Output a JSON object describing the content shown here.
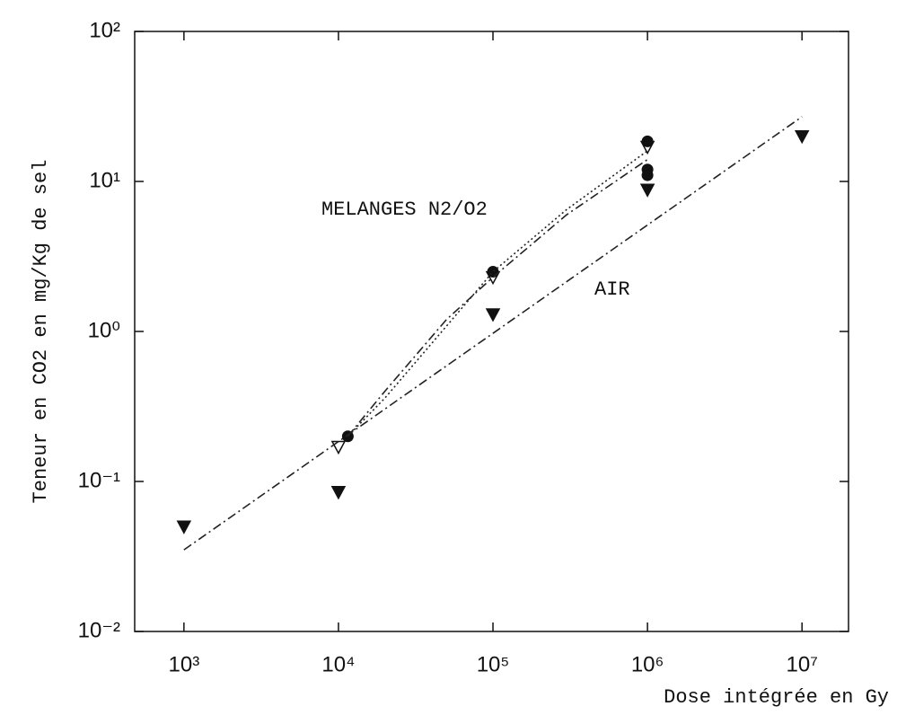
{
  "chart_data": {
    "type": "scatter",
    "x_label": "Dose intégrée en Gy",
    "y_label": "Teneur en CO2 en mg/Kg de sel",
    "annotations": [
      "MELANGES N2/O2",
      "AIR"
    ],
    "log_x": true,
    "log_y": true,
    "xlim": [
      480,
      20000000
    ],
    "ylim": [
      0.01,
      100
    ],
    "xticks": [
      {
        "value": 1000,
        "label": "10³"
      },
      {
        "value": 10000,
        "label": "10⁴"
      },
      {
        "value": 100000,
        "label": "10⁵"
      },
      {
        "value": 1000000,
        "label": "10⁶"
      },
      {
        "value": 10000000,
        "label": "10⁷"
      }
    ],
    "yticks": [
      {
        "value": 0.01,
        "label": "10⁻²"
      },
      {
        "value": 0.1,
        "label": "10⁻¹"
      },
      {
        "value": 1,
        "label": "10⁰"
      },
      {
        "value": 10,
        "label": "10¹"
      },
      {
        "value": 100,
        "label": "10²"
      }
    ],
    "series": [
      {
        "marker": "triangle-down-filled",
        "color": "#111111",
        "x": [
          1000,
          10000,
          100000,
          1000000,
          10000000
        ],
        "values": [
          0.05,
          0.085,
          1.3,
          8.8,
          20
        ]
      },
      {
        "marker": "circle-filled",
        "color": "#111111",
        "x": [
          11500,
          100000,
          1000000,
          1000000,
          1000000
        ],
        "values": [
          0.2,
          2.5,
          18.5,
          12,
          11
        ]
      },
      {
        "marker": "triangle-down-open",
        "color": "#111111",
        "x": [
          10000,
          100000,
          1000000
        ],
        "values": [
          0.17,
          2.3,
          17
        ]
      },
      {
        "line": "dashdot",
        "color": "#222222",
        "x": [
          1000,
          10000000
        ],
        "values": [
          0.035,
          27
        ]
      },
      {
        "line": "dashdot",
        "color": "#222222",
        "x": [
          11500,
          20000,
          50000,
          100000,
          300000,
          1000000
        ],
        "values": [
          0.2,
          0.4,
          1.2,
          2.3,
          6,
          14
        ]
      },
      {
        "line": "dotted",
        "color": "#222222",
        "x": [
          11500,
          20000,
          100000,
          300000,
          1000000
        ],
        "values": [
          0.2,
          0.36,
          2.5,
          6.5,
          16
        ]
      }
    ]
  }
}
